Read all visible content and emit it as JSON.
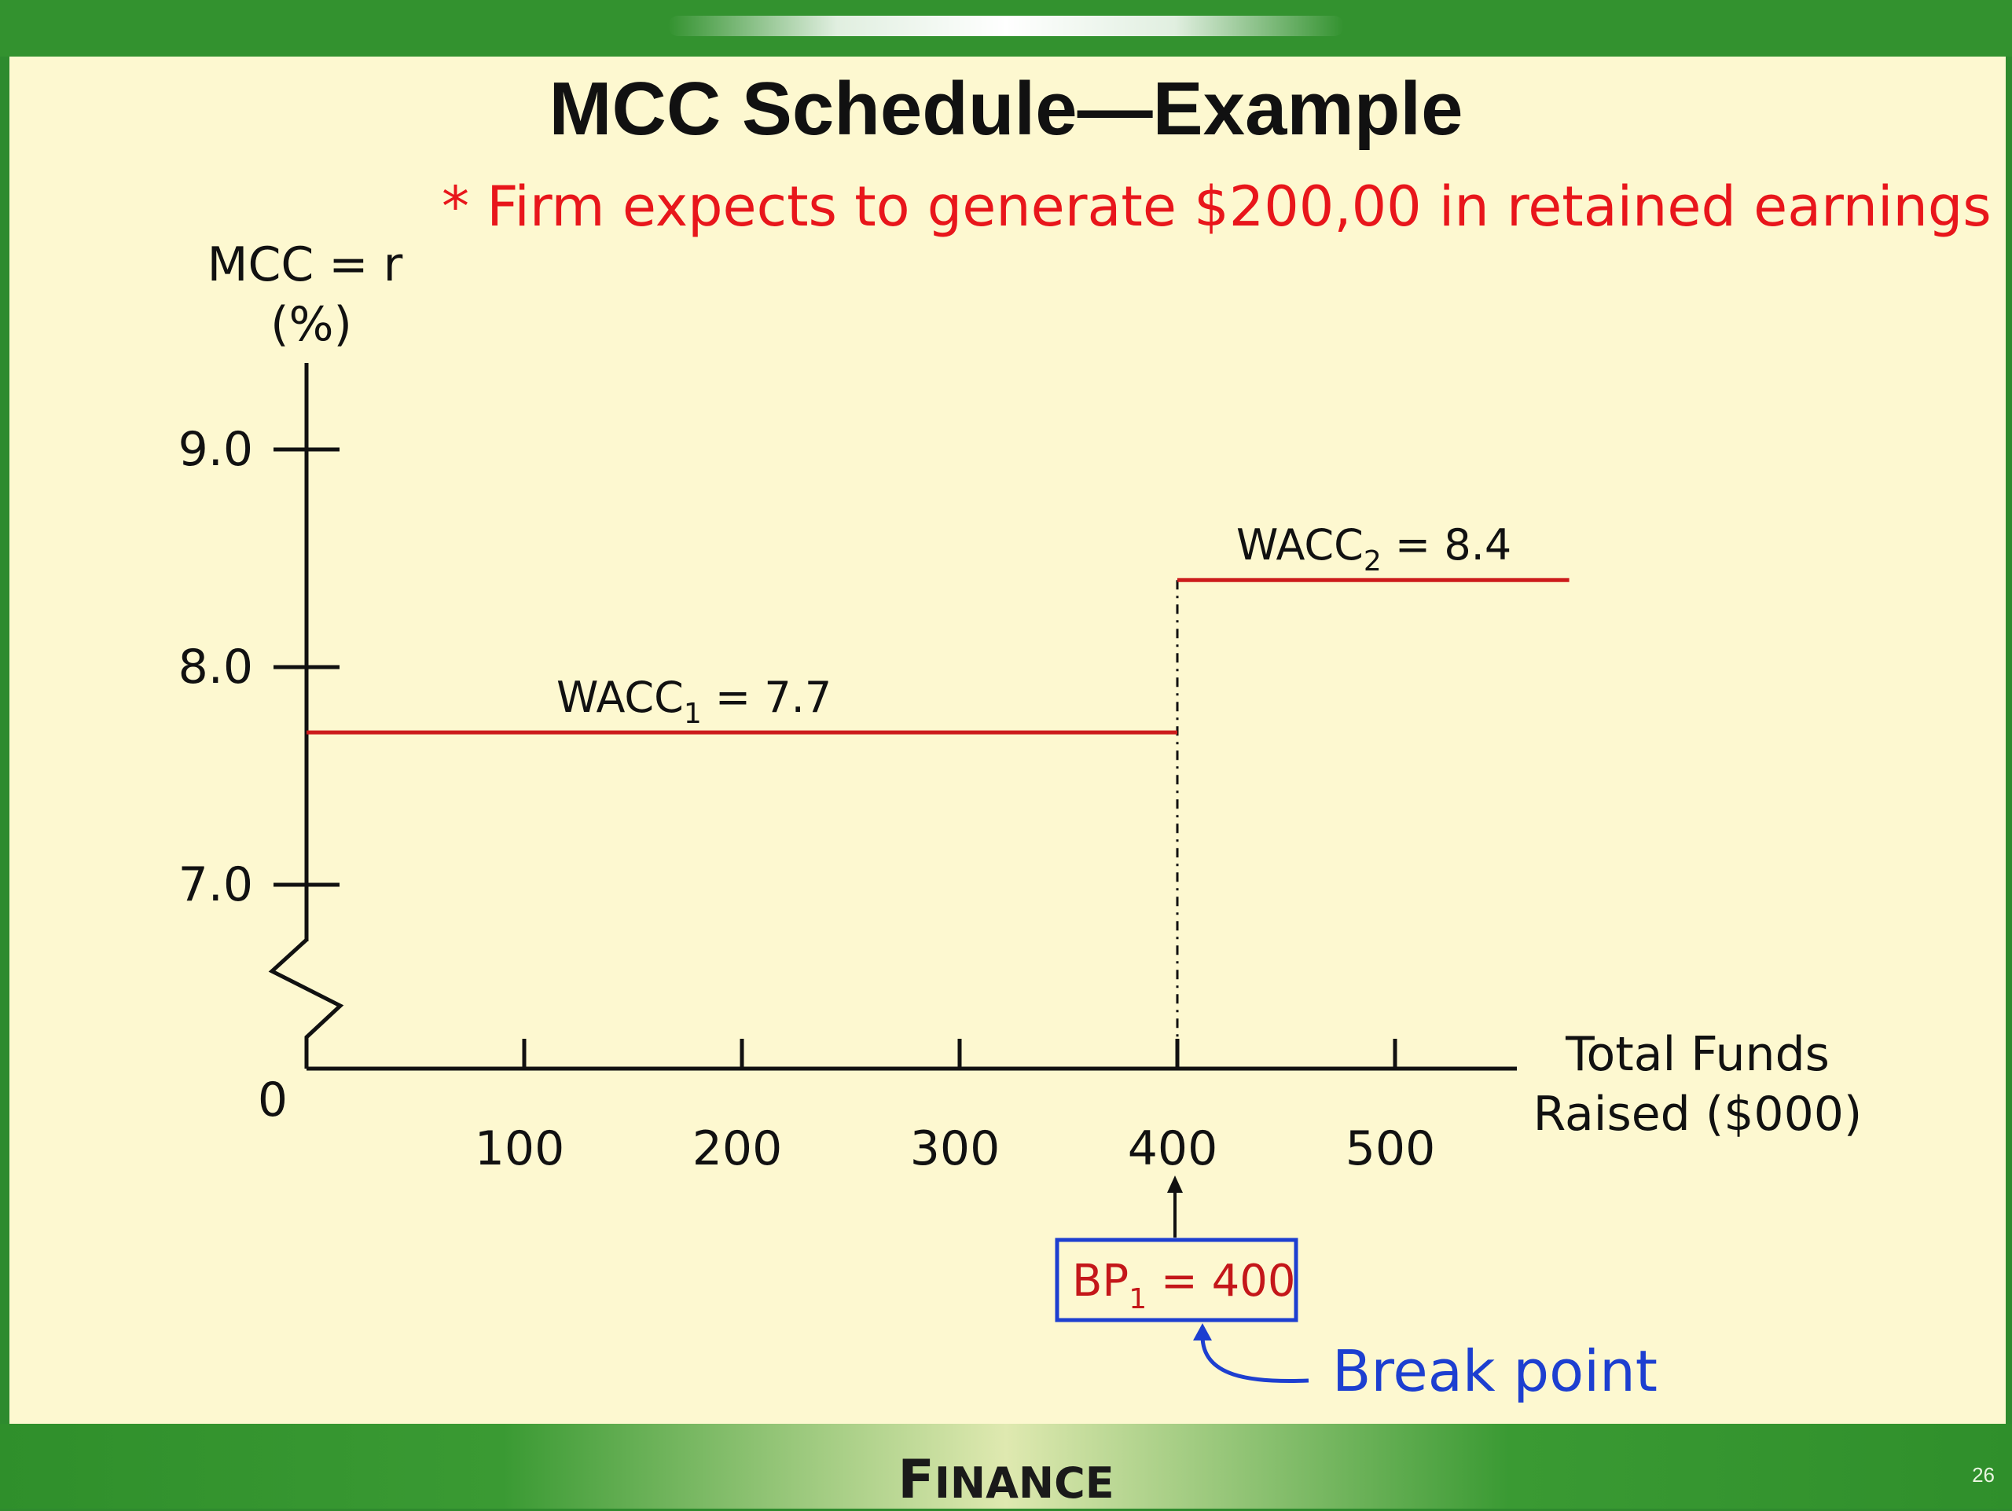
{
  "slide": {
    "title": "MCC Schedule—Example",
    "note": "* Firm expects to generate $200,00 in retained earnings",
    "footer_first": "F",
    "footer_rest": "INANCE",
    "page_number": "26",
    "colors": {
      "green": "#33922f",
      "background": "#fdf8d0",
      "series": "#cc1b1b",
      "callout": "#1d3fd0"
    }
  },
  "chart_data": {
    "type": "line",
    "ylabel_line1": "MCC = r",
    "ylabel_line2": "(%)",
    "xlabel_line1": "Total Funds",
    "xlabel_line2": "Raised ($000)",
    "origin_label": "0",
    "x_ticks": [
      100,
      200,
      300,
      400,
      500
    ],
    "x_tick_labels": [
      "100",
      "200",
      "300",
      "400",
      "500"
    ],
    "y_ticks": [
      7.0,
      8.0,
      9.0
    ],
    "y_tick_labels": [
      "7.0",
      "8.0",
      "9.0"
    ],
    "xlim": [
      0,
      555
    ],
    "ylim": [
      7.0,
      9.0
    ],
    "y_axis_broken": true,
    "series": [
      {
        "segments": [
          {
            "x": [
              0,
              400
            ],
            "y": 7.7,
            "label": "WACC",
            "sub": "1",
            "value_text": " = 7.7"
          },
          {
            "x": [
              400,
              580
            ],
            "y": 8.4,
            "label": "WACC",
            "sub": "2",
            "value_text": " = 8.4"
          }
        ]
      }
    ],
    "break_line_x": 400,
    "annotations": {
      "bp_main": "BP",
      "bp_sub": "1",
      "bp_rest": " = 400",
      "break_point": "Break point"
    }
  }
}
